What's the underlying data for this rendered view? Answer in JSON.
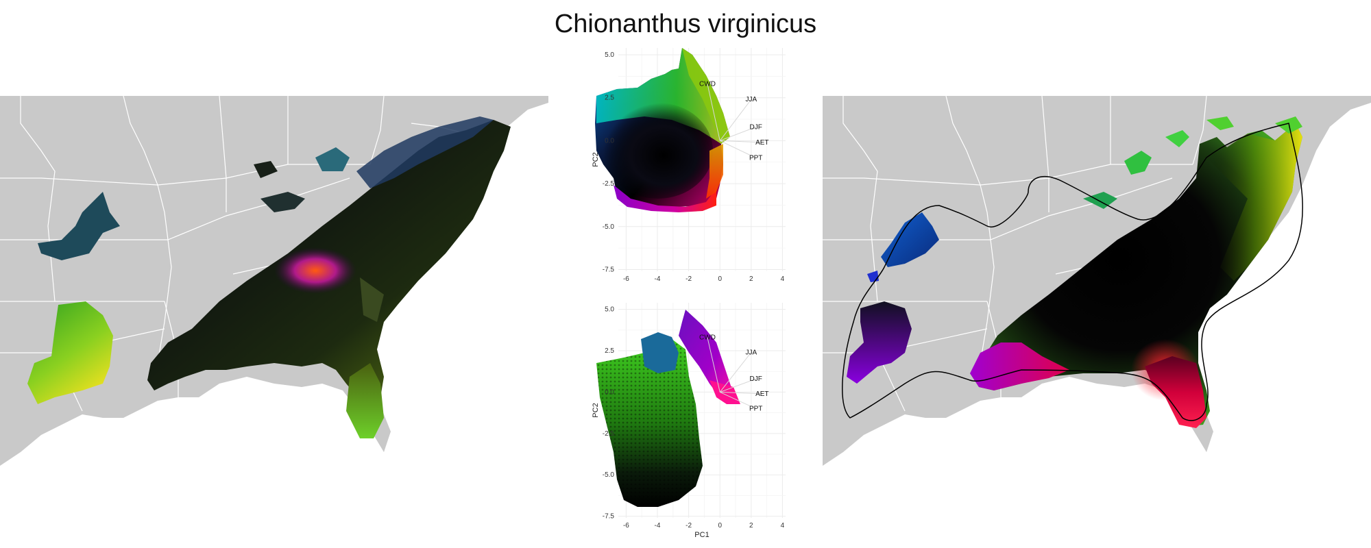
{
  "title": "Chionanthus virginicus",
  "colors": {
    "land": "#c9c9c9",
    "state_border": "#ffffff",
    "grid": "#ebebeb",
    "hull": "#000000"
  },
  "chart_data": [
    {
      "type": "map",
      "name": "left-map",
      "description_of_fill": "RGB-colored predicted climate-space raster"
    },
    {
      "type": "scatter",
      "name": "pca-top",
      "xlabel": "PC1",
      "ylabel": "PC2",
      "xlim": [
        -6.5,
        4.2
      ],
      "ylim": [
        -7.6,
        5.4
      ],
      "x_ticks": [
        "-6",
        "-4",
        "-2",
        "0",
        "2",
        "4"
      ],
      "y_ticks": [
        "5.0",
        "2.5",
        "0.0",
        "-2.5",
        "-5.0",
        "-7.5"
      ],
      "x_tick_values": [
        -6,
        -4,
        -2,
        0,
        2,
        4
      ],
      "y_tick_values": [
        5,
        2.5,
        0,
        -2.5,
        -5,
        -7.5
      ],
      "grid": true,
      "vectors": [
        {
          "label": "CWD",
          "x": -0.8,
          "y": 3.3
        },
        {
          "label": "JJA",
          "x": 2.0,
          "y": 2.4
        },
        {
          "label": "DJF",
          "x": 2.3,
          "y": 0.8
        },
        {
          "label": "AET",
          "x": 2.7,
          "y": -0.1
        },
        {
          "label": "PPT",
          "x": 2.3,
          "y": -1.0
        }
      ]
    },
    {
      "type": "scatter",
      "name": "pca-bottom",
      "xlabel": "PC1",
      "ylabel": "PC2",
      "xlim": [
        -6.5,
        4.2
      ],
      "ylim": [
        -7.6,
        5.4
      ],
      "x_ticks": [
        "-6",
        "-4",
        "-2",
        "0",
        "2",
        "4"
      ],
      "y_ticks": [
        "5.0",
        "2.5",
        "0.0",
        "-2.5",
        "-5.0",
        "-7.5"
      ],
      "x_tick_values": [
        -6,
        -4,
        -2,
        0,
        2,
        4
      ],
      "y_tick_values": [
        5,
        2.5,
        0,
        -2.5,
        -5,
        -7.5
      ],
      "grid": true,
      "vectors": [
        {
          "label": "CWD",
          "x": -0.8,
          "y": 3.3
        },
        {
          "label": "JJA",
          "x": 2.0,
          "y": 2.4
        },
        {
          "label": "DJF",
          "x": 2.3,
          "y": 0.8
        },
        {
          "label": "AET",
          "x": 2.7,
          "y": -0.1
        },
        {
          "label": "PPT",
          "x": 2.3,
          "y": -1.0
        }
      ]
    },
    {
      "type": "map",
      "name": "right-map",
      "description_of_fill": "RGB-colored climate space with convex range hull"
    }
  ]
}
